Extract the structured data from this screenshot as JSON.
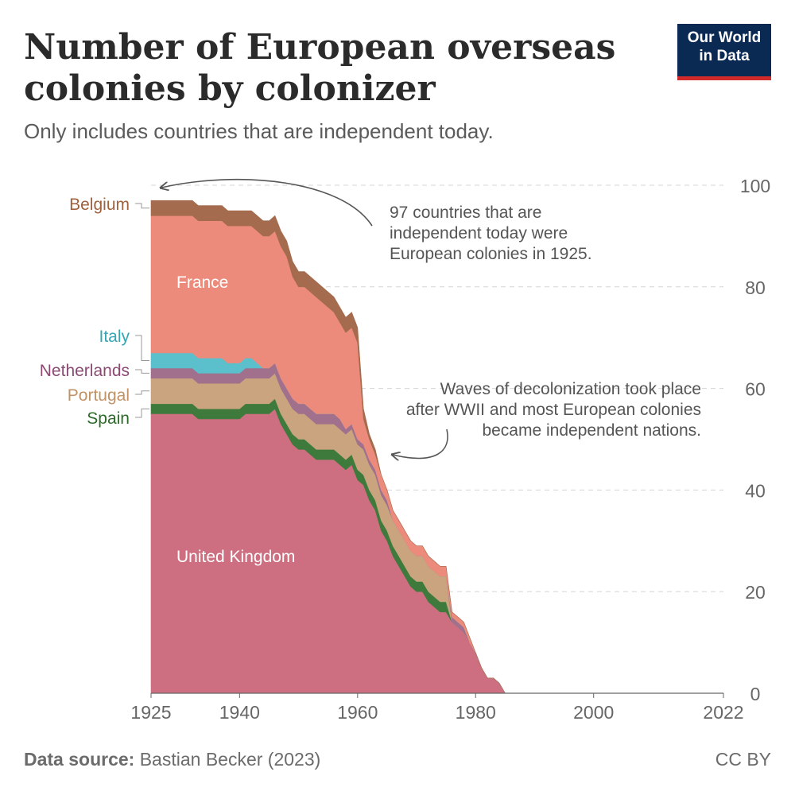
{
  "title": "Number of European overseas colonies by colonizer",
  "subtitle": "Only includes countries that are independent today.",
  "logo": {
    "line1": "Our World",
    "line2": "in Data"
  },
  "footer": {
    "source_label": "Data source:",
    "source_text": "Bastian Becker (2023)",
    "license": "CC BY"
  },
  "colors": {
    "United Kingdom": "#cd6f81",
    "Spain": "#3e7a3c",
    "Portugal": "#c9a47e",
    "Netherlands": "#a0708c",
    "Italy": "#5bbfcc",
    "France": "#ec8b7b",
    "Belgium": "#a46b4e"
  },
  "chart_data": {
    "type": "area",
    "stacked": true,
    "xlim": [
      1925,
      2022
    ],
    "ylim": [
      0,
      100
    ],
    "x_ticks": [
      1925,
      1940,
      1960,
      1980,
      2000,
      2022
    ],
    "y_ticks": [
      0,
      20,
      40,
      60,
      80,
      100
    ],
    "grid": "horizontal dashed",
    "annotations": [
      {
        "text": [
          "97 countries that are",
          "independent today were",
          "European colonies in 1925."
        ],
        "points_to": [
          1925,
          97
        ]
      },
      {
        "text": [
          "Waves of decolonization took place",
          "after WWII and most European colonies",
          "became independent nations."
        ],
        "points_to": [
          1966,
          47
        ]
      }
    ],
    "x": [
      1925,
      1926,
      1927,
      1928,
      1929,
      1930,
      1931,
      1932,
      1933,
      1934,
      1935,
      1936,
      1937,
      1938,
      1939,
      1940,
      1941,
      1942,
      1943,
      1944,
      1945,
      1946,
      1947,
      1948,
      1949,
      1950,
      1951,
      1952,
      1953,
      1954,
      1955,
      1956,
      1957,
      1958,
      1959,
      1960,
      1961,
      1962,
      1963,
      1964,
      1965,
      1966,
      1967,
      1968,
      1969,
      1970,
      1971,
      1972,
      1973,
      1974,
      1975,
      1976,
      1977,
      1978,
      1979,
      1980,
      1981,
      1982,
      1983,
      1984,
      1985,
      1990,
      2000,
      2022
    ],
    "series": [
      {
        "name": "United Kingdom",
        "values": [
          55,
          55,
          55,
          55,
          55,
          55,
          55,
          55,
          54,
          54,
          54,
          54,
          54,
          54,
          54,
          54,
          55,
          55,
          55,
          55,
          55,
          56,
          53,
          51,
          49,
          48,
          48,
          47,
          46,
          46,
          46,
          46,
          45,
          44,
          45,
          42,
          41,
          38,
          36,
          32,
          30,
          27,
          25,
          23,
          21,
          20,
          20,
          18,
          17,
          16,
          16,
          14,
          13,
          12,
          10,
          8,
          5,
          3,
          3,
          2,
          0,
          0,
          0,
          0
        ]
      },
      {
        "name": "Spain",
        "values": [
          2,
          2,
          2,
          2,
          2,
          2,
          2,
          2,
          2,
          2,
          2,
          2,
          2,
          2,
          2,
          2,
          2,
          2,
          2,
          2,
          2,
          2,
          2,
          2,
          2,
          2,
          2,
          2,
          2,
          2,
          2,
          2,
          2,
          2,
          2,
          2,
          2,
          2,
          2,
          2,
          2,
          2,
          2,
          2,
          2,
          2,
          2,
          2,
          2,
          2,
          2,
          0,
          0,
          0,
          0,
          0,
          0,
          0,
          0,
          0,
          0,
          0,
          0,
          0
        ]
      },
      {
        "name": "Portugal",
        "values": [
          5,
          5,
          5,
          5,
          5,
          5,
          5,
          5,
          5,
          5,
          5,
          5,
          5,
          5,
          5,
          5,
          5,
          5,
          5,
          5,
          5,
          5,
          5,
          5,
          5,
          5,
          5,
          5,
          5,
          5,
          5,
          5,
          5,
          5,
          5,
          5,
          5,
          5,
          5,
          5,
          5,
          5,
          5,
          5,
          5,
          5,
          5,
          5,
          5,
          5,
          5,
          0,
          0,
          0,
          0,
          0,
          0,
          0,
          0,
          0,
          0,
          0,
          0,
          0
        ]
      },
      {
        "name": "Netherlands",
        "values": [
          2,
          2,
          2,
          2,
          2,
          2,
          2,
          2,
          2,
          2,
          2,
          2,
          2,
          2,
          2,
          2,
          2,
          2,
          2,
          2,
          2,
          2,
          2,
          2,
          2,
          2,
          2,
          2,
          2,
          2,
          2,
          2,
          2,
          1,
          1,
          1,
          1,
          1,
          1,
          1,
          1,
          0,
          0,
          0,
          0,
          0,
          0,
          0,
          0,
          0,
          0,
          1,
          1,
          1,
          0,
          0,
          0,
          0,
          0,
          0,
          0,
          0,
          0,
          0
        ]
      },
      {
        "name": "Italy",
        "values": [
          3,
          3,
          3,
          3,
          3,
          3,
          3,
          3,
          3,
          3,
          3,
          3,
          3,
          2,
          2,
          2,
          2,
          2,
          1,
          0,
          0,
          0,
          0,
          0,
          0,
          0,
          0,
          0,
          0,
          0,
          0,
          0,
          0,
          0,
          0,
          0,
          0,
          0,
          0,
          0,
          0,
          0,
          0,
          0,
          0,
          0,
          0,
          0,
          0,
          0,
          0,
          0,
          0,
          0,
          0,
          0,
          0,
          0,
          0,
          0,
          0,
          0,
          0,
          0
        ]
      },
      {
        "name": "France",
        "values": [
          27,
          27,
          27,
          27,
          27,
          27,
          27,
          27,
          27,
          27,
          27,
          27,
          27,
          27,
          27,
          27,
          26,
          26,
          26,
          26,
          26,
          26,
          26,
          26,
          24,
          23,
          23,
          23,
          23,
          22,
          21,
          20,
          19,
          19,
          19,
          19,
          5,
          4,
          3,
          3,
          2,
          2,
          2,
          2,
          2,
          2,
          2,
          2,
          2,
          2,
          2,
          1,
          1,
          1,
          1,
          0,
          0,
          0,
          0,
          0,
          0,
          0,
          0,
          0
        ]
      },
      {
        "name": "Belgium",
        "values": [
          3,
          3,
          3,
          3,
          3,
          3,
          3,
          3,
          3,
          3,
          3,
          3,
          3,
          3,
          3,
          3,
          3,
          3,
          3,
          3,
          3,
          3,
          3,
          3,
          3,
          3,
          3,
          3,
          3,
          3,
          3,
          3,
          3,
          3,
          3,
          3,
          2,
          1,
          1,
          0,
          0,
          0,
          0,
          0,
          0,
          0,
          0,
          0,
          0,
          0,
          0,
          0,
          0,
          0,
          0,
          0,
          0,
          0,
          0,
          0,
          0,
          0,
          0,
          0
        ]
      }
    ]
  }
}
